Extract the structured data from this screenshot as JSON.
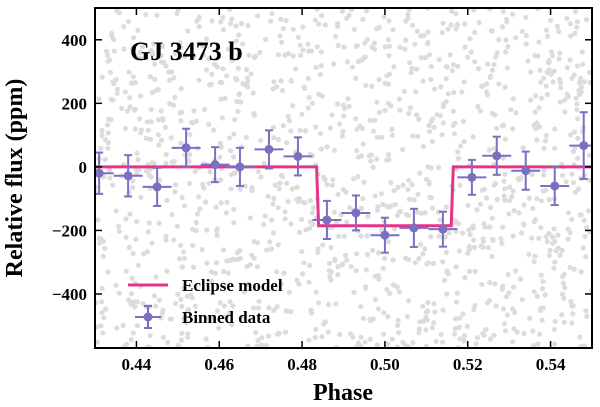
{
  "chart_data": {
    "type": "scatter",
    "annotation": "GJ 3473 b",
    "xlabel": "Phase",
    "ylabel": "Relative flux (ppm)",
    "xlim": [
      0.43,
      0.55
    ],
    "ylim": [
      -570,
      500
    ],
    "xticks": [
      0.44,
      0.46,
      0.48,
      0.5,
      0.52,
      0.54
    ],
    "xtick_labels": [
      "0.44",
      "0.46",
      "0.48",
      "0.50",
      "0.52",
      "0.54"
    ],
    "yticks": [
      -400,
      -200,
      0,
      200,
      400
    ],
    "ytick_labels": [
      "−400",
      "−200",
      "0",
      "200",
      "400"
    ],
    "legend": {
      "position": "lower-left",
      "entries": [
        {
          "label": "Eclipse model",
          "kind": "line"
        },
        {
          "label": "Binned data",
          "kind": "errorbar"
        }
      ]
    },
    "colors": {
      "model": "#e8338a",
      "binned": "#7a6fc0",
      "raw": "#dcdcdc"
    },
    "series": [
      {
        "name": "Eclipse model",
        "kind": "step-line",
        "x": [
          0.43,
          0.4835,
          0.484,
          0.516,
          0.5165,
          0.55
        ],
        "values": [
          0,
          0,
          -185,
          -185,
          0,
          0
        ]
      },
      {
        "name": "Binned data",
        "kind": "errorbar",
        "x": [
          0.431,
          0.438,
          0.445,
          0.452,
          0.459,
          0.465,
          0.472,
          0.479,
          0.486,
          0.493,
          0.5,
          0.507,
          0.514,
          0.521,
          0.527,
          0.534,
          0.541,
          0.548
        ],
        "values": [
          -20,
          -28,
          -63,
          60,
          7,
          0,
          55,
          33,
          -167,
          -145,
          -215,
          -192,
          -196,
          -33,
          35,
          -12,
          -60,
          67
        ],
        "yerr": [
          65,
          65,
          60,
          60,
          55,
          60,
          60,
          60,
          60,
          55,
          55,
          60,
          55,
          55,
          60,
          60,
          60,
          105
        ],
        "xerr": [
          0.0035,
          0.0035,
          0.0035,
          0.0035,
          0.0035,
          0.0035,
          0.0035,
          0.0035,
          0.0035,
          0.0035,
          0.0035,
          0.0035,
          0.0035,
          0.0035,
          0.0035,
          0.0035,
          0.0035,
          0.0035
        ]
      }
    ]
  }
}
